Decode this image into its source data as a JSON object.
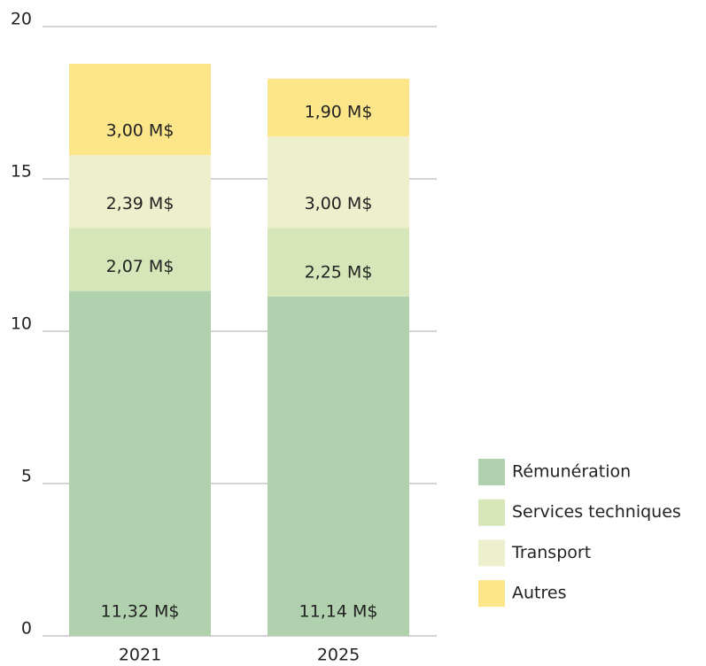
{
  "chart_data": {
    "type": "stacked_bar",
    "categories": [
      "2021",
      "2025"
    ],
    "series": [
      {
        "name": "Rémunération",
        "color": "#b0d0ae",
        "values": [
          11.32,
          11.14
        ],
        "value_labels": [
          "11,32 M$",
          "11,14 M$"
        ]
      },
      {
        "name": "Services techniques",
        "color": "#d6e6b8",
        "values": [
          2.07,
          2.25
        ],
        "value_labels": [
          "2,07 M$",
          "2,25 M$"
        ]
      },
      {
        "name": "Transport",
        "color": "#eef0cd",
        "values": [
          2.39,
          3.0
        ],
        "value_labels": [
          "2,39 M$",
          "3,00 M$"
        ]
      },
      {
        "name": "Autres",
        "color": "#fde68a",
        "values": [
          3.0,
          1.9
        ],
        "value_labels": [
          "3,00 M$",
          "1,90 M$"
        ]
      }
    ],
    "ylim": [
      0,
      20
    ],
    "yticks": [
      0,
      5,
      10,
      15,
      20
    ],
    "grid": true,
    "legend": "right"
  }
}
